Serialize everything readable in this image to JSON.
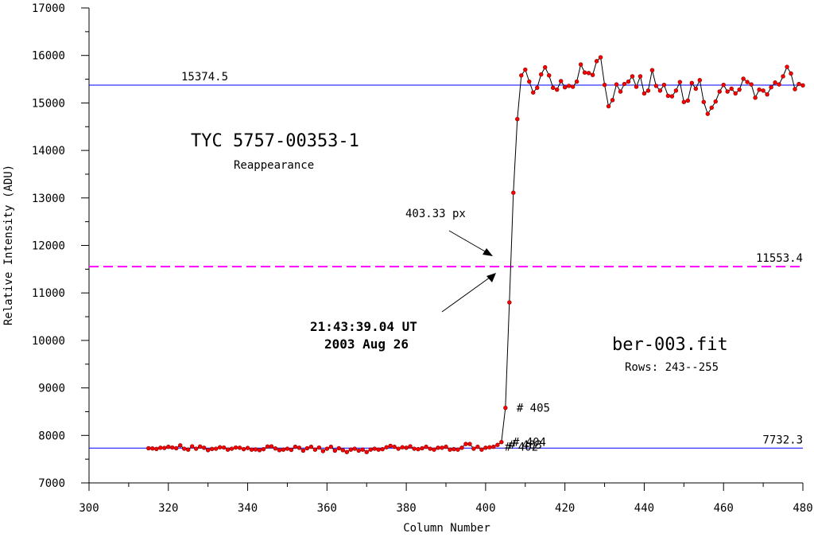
{
  "chart_data": {
    "type": "line",
    "title": "TYC 5757-00353-1",
    "subtitle": "Reappearance",
    "xlabel": "Column Number",
    "ylabel": "Relative Intensity (ADU)",
    "xlim": [
      300,
      480
    ],
    "ylim": [
      7000,
      17000
    ],
    "x_ticks": [
      300,
      320,
      340,
      360,
      380,
      400,
      420,
      440,
      460,
      480
    ],
    "y_ticks": [
      7000,
      8000,
      9000,
      10000,
      11000,
      12000,
      13000,
      14000,
      15000,
      16000,
      17000
    ],
    "grid": false,
    "file_label": "ber-003.fit",
    "rows_label": "Rows: 243--255",
    "time_label": "21:43:39.04 UT",
    "date_label": "2003 Aug 26",
    "px_label": "403.33 px",
    "reference_lines": [
      {
        "label": "15374.5",
        "y": 15374.5,
        "style": "solid",
        "color": "#0000ff"
      },
      {
        "label": "11553.4",
        "y": 11553.4,
        "style": "dashed",
        "color": "#ff00ff"
      },
      {
        "label": "7732.3",
        "y": 7732.3,
        "style": "solid",
        "color": "#0000ff"
      }
    ],
    "point_annotations": [
      {
        "label": "# 402",
        "x": 402
      },
      {
        "label": "# 403",
        "x": 403
      },
      {
        "label": "# 404",
        "x": 404
      },
      {
        "label": "# 405",
        "x": 405
      }
    ],
    "series": [
      {
        "line_color": "#000000",
        "marker_color": "#ff0000",
        "x": [
          315,
          316,
          317,
          318,
          319,
          320,
          321,
          322,
          323,
          324,
          325,
          326,
          327,
          328,
          329,
          330,
          331,
          332,
          333,
          334,
          335,
          336,
          337,
          338,
          339,
          340,
          341,
          342,
          343,
          344,
          345,
          346,
          347,
          348,
          349,
          350,
          351,
          352,
          353,
          354,
          355,
          356,
          357,
          358,
          359,
          360,
          361,
          362,
          363,
          364,
          365,
          366,
          367,
          368,
          369,
          370,
          371,
          372,
          373,
          374,
          375,
          376,
          377,
          378,
          379,
          380,
          381,
          382,
          383,
          384,
          385,
          386,
          387,
          388,
          389,
          390,
          391,
          392,
          393,
          394,
          395,
          396,
          397,
          398,
          399,
          400,
          401,
          402,
          403,
          404,
          405,
          406,
          407,
          408,
          409,
          410,
          411,
          412,
          413,
          414,
          415,
          416,
          417,
          418,
          419,
          420,
          421,
          422,
          423,
          424,
          425,
          426,
          427,
          428,
          429,
          430,
          431,
          432,
          433,
          434,
          435,
          436,
          437,
          438,
          439,
          440,
          441,
          442,
          443,
          444,
          445,
          446,
          447,
          448,
          449,
          450,
          451,
          452,
          453,
          454,
          455,
          456,
          457,
          458,
          459,
          460,
          461,
          462,
          463,
          464,
          465,
          466,
          467,
          468,
          469,
          470,
          471,
          472,
          473,
          474,
          475,
          476,
          477,
          478,
          479,
          480
        ],
        "y": [
          7730,
          7725,
          7715,
          7740,
          7735,
          7760,
          7745,
          7730,
          7790,
          7720,
          7700,
          7770,
          7720,
          7765,
          7740,
          7690,
          7715,
          7720,
          7750,
          7745,
          7700,
          7720,
          7745,
          7740,
          7710,
          7735,
          7700,
          7705,
          7690,
          7710,
          7765,
          7770,
          7725,
          7690,
          7700,
          7720,
          7695,
          7760,
          7740,
          7680,
          7730,
          7760,
          7700,
          7745,
          7670,
          7720,
          7760,
          7680,
          7730,
          7690,
          7650,
          7700,
          7720,
          7680,
          7700,
          7650,
          7700,
          7720,
          7700,
          7710,
          7750,
          7780,
          7760,
          7720,
          7750,
          7740,
          7770,
          7720,
          7710,
          7730,
          7760,
          7720,
          7700,
          7740,
          7740,
          7760,
          7700,
          7710,
          7700,
          7740,
          7820,
          7820,
          7720,
          7760,
          7700,
          7740,
          7750,
          7760,
          7800,
          7860,
          8580,
          10800,
          13110,
          14660,
          15580,
          15700,
          15450,
          15220,
          15320,
          15600,
          15750,
          15580,
          15320,
          15280,
          15460,
          15330,
          15360,
          15340,
          15450,
          15810,
          15640,
          15630,
          15590,
          15880,
          15960,
          15380,
          14930,
          15060,
          15390,
          15240,
          15400,
          15450,
          15560,
          15340,
          15560,
          15200,
          15260,
          15690,
          15360,
          15260,
          15380,
          15150,
          15140,
          15260,
          15440,
          15020,
          15050,
          15420,
          15300,
          15480,
          15020,
          14770,
          14900,
          15030,
          15240,
          15380,
          15240,
          15300,
          15200,
          15280,
          15510,
          15440,
          15390,
          15110,
          15280,
          15260,
          15180,
          15330,
          15430,
          15390,
          15560,
          15760,
          15620,
          15290,
          15400,
          15370
        ]
      }
    ]
  }
}
